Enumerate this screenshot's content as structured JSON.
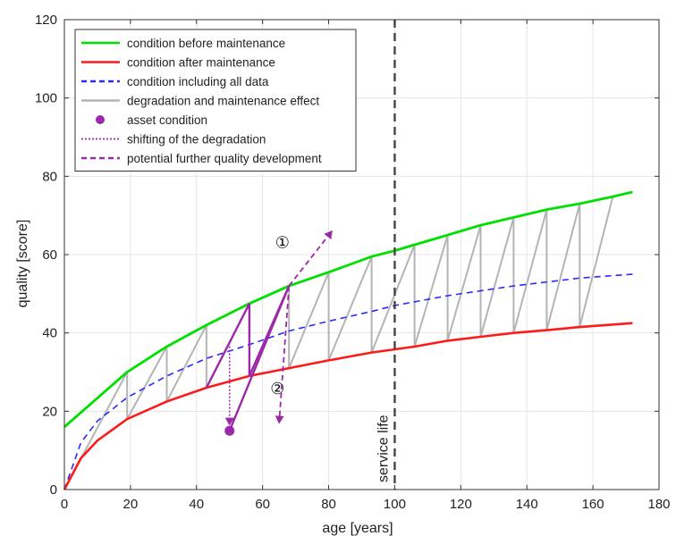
{
  "chart_data": {
    "type": "line",
    "xlabel": "age [years]",
    "ylabel": "quality [score]",
    "xlim": [
      0,
      180
    ],
    "ylim": [
      0,
      120
    ],
    "xticks": [
      0,
      20,
      40,
      60,
      80,
      100,
      120,
      140,
      160,
      180
    ],
    "yticks": [
      0,
      20,
      40,
      60,
      80,
      100,
      120
    ],
    "grid": true,
    "legend_position": "top-left",
    "colors": {
      "before": "#00e000",
      "after": "#ff1a1a",
      "all": "#2a2aff",
      "degradation": "#b4b4b4",
      "asset": "#9b2aa8",
      "frame": "#333333"
    },
    "legend": [
      {
        "label": "condition before maintenance",
        "style": "solid",
        "color": "#00e000",
        "marker": "line"
      },
      {
        "label": "condition after maintenance",
        "style": "solid",
        "color": "#ff1a1a",
        "marker": "line"
      },
      {
        "label": "condition including all data",
        "style": "dashed",
        "color": "#2a2aff",
        "marker": "line"
      },
      {
        "label": "degradation and maintenance effect",
        "style": "solid",
        "color": "#b4b4b4",
        "marker": "line"
      },
      {
        "label": "asset condition",
        "style": "none",
        "color": "#9b2aa8",
        "marker": "dot"
      },
      {
        "label": "shifting of the degradation",
        "style": "dotted",
        "color": "#9b2aa8",
        "marker": "line"
      },
      {
        "label": "potential further quality development",
        "style": "dashed",
        "color": "#9b2aa8",
        "marker": "line"
      }
    ],
    "curves": {
      "before_maintenance": {
        "x_range": [
          0,
          172
        ],
        "points": [
          [
            0,
            16
          ],
          [
            19,
            30
          ],
          [
            31,
            36.5
          ],
          [
            43,
            42
          ],
          [
            56,
            47.5
          ],
          [
            68,
            52
          ],
          [
            80,
            55.5
          ],
          [
            93,
            59.5
          ],
          [
            100,
            61
          ],
          [
            106,
            62.5
          ],
          [
            116,
            65
          ],
          [
            126,
            67.5
          ],
          [
            136,
            69.5
          ],
          [
            146,
            71.5
          ],
          [
            156,
            73
          ],
          [
            166,
            74.8
          ],
          [
            172,
            76
          ]
        ]
      },
      "after_maintenance": {
        "x_range": [
          0,
          172
        ],
        "points": [
          [
            0,
            0
          ],
          [
            5,
            8
          ],
          [
            10,
            12.5
          ],
          [
            19,
            18
          ],
          [
            31,
            22.5
          ],
          [
            43,
            26
          ],
          [
            56,
            29
          ],
          [
            68,
            31
          ],
          [
            80,
            33
          ],
          [
            93,
            35
          ],
          [
            106,
            36.5
          ],
          [
            116,
            38
          ],
          [
            126,
            39
          ],
          [
            136,
            40
          ],
          [
            146,
            40.7
          ],
          [
            156,
            41.5
          ],
          [
            172,
            42.5
          ]
        ]
      },
      "all_data": {
        "x_range": [
          0,
          172
        ],
        "points": [
          [
            0,
            0
          ],
          [
            5,
            12
          ],
          [
            10,
            17.5
          ],
          [
            19,
            23.5
          ],
          [
            31,
            29
          ],
          [
            43,
            33.5
          ],
          [
            56,
            37
          ],
          [
            68,
            40.5
          ],
          [
            80,
            43
          ],
          [
            93,
            45.5
          ],
          [
            100,
            47
          ],
          [
            116,
            49.5
          ],
          [
            136,
            52
          ],
          [
            156,
            54
          ],
          [
            172,
            55
          ]
        ]
      }
    },
    "sawtooth": [
      [
        0,
        0
      ],
      [
        19,
        30
      ],
      [
        19,
        18
      ],
      [
        31,
        36.5
      ],
      [
        31,
        22.5
      ],
      [
        43,
        42
      ],
      [
        43,
        26
      ],
      [
        56,
        47.5
      ],
      [
        56,
        29
      ],
      [
        68,
        52
      ],
      [
        68,
        31
      ],
      [
        80,
        55.5
      ],
      [
        80,
        33
      ],
      [
        93,
        59.5
      ],
      [
        93,
        35
      ],
      [
        106,
        62.5
      ],
      [
        106,
        36.5
      ],
      [
        116,
        65
      ],
      [
        116,
        38
      ],
      [
        126,
        67.5
      ],
      [
        126,
        39
      ],
      [
        136,
        69.5
      ],
      [
        136,
        40
      ],
      [
        146,
        71.5
      ],
      [
        146,
        40.7
      ],
      [
        156,
        73
      ],
      [
        156,
        41.5
      ],
      [
        166,
        74.8
      ]
    ],
    "highlight_segment": [
      [
        43,
        26
      ],
      [
        56,
        47.5
      ],
      [
        56,
        29
      ],
      [
        68,
        52
      ]
    ],
    "asset_point": [
      50,
      15
    ],
    "asset_line": [
      [
        50,
        15
      ],
      [
        68,
        52
      ]
    ],
    "shift_arrow": [
      [
        50,
        37.5
      ],
      [
        50,
        16.5
      ]
    ],
    "potential_up": [
      [
        68,
        52
      ],
      [
        81,
        66
      ]
    ],
    "potential_down": [
      [
        68,
        52
      ],
      [
        65,
        17
      ]
    ],
    "service_life_x": 100,
    "service_life_label": "service life",
    "annotations": [
      {
        "text": "①",
        "x": 66,
        "y": 62.8
      },
      {
        "text": "②",
        "x": 64.5,
        "y": 25.5
      }
    ]
  }
}
